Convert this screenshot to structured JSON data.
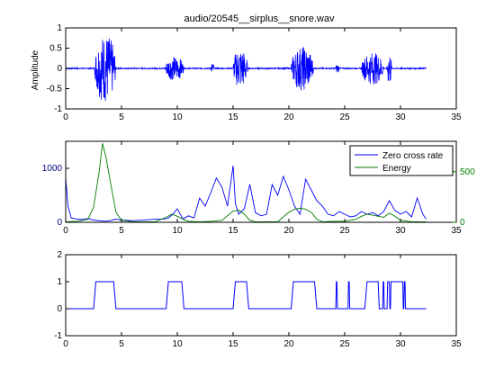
{
  "colors": {
    "blue": "#0000ff",
    "green": "#007f00",
    "axis": "#000000",
    "blue_axis": "#00007f"
  },
  "chart_data": [
    {
      "type": "line",
      "title": "audio/20545__sirplus__snore.wav",
      "xlabel": "",
      "ylabel": "Amplitude",
      "xlim": [
        0,
        35
      ],
      "ylim": [
        -1,
        1
      ],
      "xticks": [
        "0",
        "5",
        "10",
        "15",
        "20",
        "25",
        "30",
        "35"
      ],
      "yticks": [
        "-1",
        "-0.5",
        "0",
        "0.5",
        "1"
      ],
      "grid": false,
      "series": [
        {
          "description_bursts": [
            [
              2.6,
              4.5,
              0.85
            ],
            [
              8.9,
              10.6,
              0.3
            ],
            [
              13.0,
              13.3,
              0.15
            ],
            [
              15.0,
              16.3,
              0.5
            ],
            [
              20.2,
              22.2,
              0.55
            ],
            [
              24.2,
              24.5,
              0.12
            ],
            [
              26.5,
              28.5,
              0.4
            ],
            [
              28.8,
              29.2,
              0.45
            ]
          ],
          "color": "#0000ff",
          "x_end": 32.3
        }
      ]
    },
    {
      "type": "line",
      "title": "",
      "xlim": [
        0,
        35
      ],
      "ylim_left": [
        0,
        1500
      ],
      "ylim_right": [
        0,
        800
      ],
      "xticks": [
        "0",
        "5",
        "10",
        "15",
        "20",
        "25",
        "30",
        "35"
      ],
      "yticks_left": [
        "0",
        "1000"
      ],
      "yticks_right": [
        "0",
        "500"
      ],
      "legend_position": "top-right",
      "series": [
        {
          "name": "Zero cross rate",
          "color": "#0000ff",
          "axis": "left",
          "x": [
            0,
            0.2,
            0.5,
            1,
            1.5,
            2,
            2.5,
            3,
            3.5,
            4,
            4.5,
            5,
            6,
            7,
            8,
            8.8,
            9.2,
            9.6,
            10,
            10.5,
            11,
            11.5,
            12,
            12.5,
            13,
            13.5,
            14,
            14.5,
            15,
            15.2,
            15.5,
            16,
            16.5,
            17,
            17.5,
            18,
            18.5,
            19,
            19.5,
            20,
            20.5,
            21,
            21.5,
            22,
            22.5,
            23,
            23.5,
            24,
            24.5,
            25,
            25.5,
            26,
            26.5,
            27,
            27.5,
            28,
            28.5,
            29,
            29.5,
            30,
            30.5,
            31,
            31.5,
            32,
            32.3
          ],
          "values": [
            820,
            300,
            80,
            60,
            50,
            70,
            40,
            30,
            20,
            30,
            60,
            40,
            30,
            40,
            60,
            60,
            80,
            150,
            250,
            60,
            120,
            80,
            450,
            300,
            550,
            820,
            650,
            300,
            1050,
            350,
            150,
            250,
            700,
            180,
            120,
            150,
            700,
            500,
            850,
            600,
            300,
            150,
            800,
            600,
            400,
            300,
            150,
            120,
            200,
            150,
            100,
            120,
            200,
            150,
            180,
            120,
            200,
            400,
            220,
            150,
            200,
            100,
            450,
            150,
            60
          ]
        },
        {
          "name": "Energy",
          "color": "#007f00",
          "axis": "right",
          "x": [
            0,
            1,
            2,
            2.5,
            3,
            3.3,
            3.6,
            4,
            4.5,
            5,
            6,
            8,
            9,
            9.5,
            10,
            10.5,
            11,
            12,
            13,
            14,
            15,
            15.5,
            16,
            16.5,
            17,
            19,
            20,
            20.5,
            21,
            21.5,
            22,
            22.5,
            23,
            24,
            25,
            26,
            26.5,
            27,
            27.5,
            28,
            28.5,
            29,
            29.5,
            30,
            31,
            32,
            32.3
          ],
          "values": [
            5,
            10,
            30,
            150,
            500,
            780,
            650,
            400,
            100,
            20,
            5,
            5,
            50,
            80,
            60,
            30,
            10,
            5,
            10,
            20,
            110,
            120,
            80,
            20,
            5,
            5,
            100,
            130,
            140,
            130,
            100,
            30,
            5,
            10,
            10,
            30,
            60,
            80,
            70,
            60,
            50,
            90,
            60,
            20,
            5,
            5,
            5
          ]
        }
      ]
    },
    {
      "type": "line",
      "title": "",
      "xlim": [
        0,
        35
      ],
      "ylim": [
        -1,
        2
      ],
      "xticks": [
        "0",
        "5",
        "10",
        "15",
        "20",
        "25",
        "30",
        "35"
      ],
      "yticks": [
        "-1",
        "0",
        "1",
        "2"
      ],
      "series": [
        {
          "color": "#0000ff",
          "x": [
            0,
            2.5,
            2.7,
            4.3,
            4.5,
            9.0,
            9.2,
            10.4,
            10.6,
            15.0,
            15.2,
            16.2,
            16.4,
            20.2,
            20.4,
            22.3,
            22.5,
            24.2,
            24.25,
            24.3,
            24.35,
            25.3,
            25.35,
            25.4,
            25.45,
            26.8,
            27.0,
            28.0,
            28.1,
            28.4,
            28.45,
            28.5,
            28.55,
            28.8,
            28.85,
            29.0,
            29.05,
            29.1,
            29.15,
            30.2,
            30.25,
            30.3,
            30.35,
            30.4,
            30.45,
            30.5,
            30.55,
            32.3
          ],
          "values": [
            0,
            0,
            1,
            1,
            0,
            0,
            1,
            1,
            0,
            0,
            1,
            1,
            0,
            0,
            1,
            1,
            0,
            0,
            1,
            1,
            0,
            0,
            1,
            1,
            0,
            0,
            1,
            1,
            0,
            0,
            1,
            1,
            0,
            0,
            1,
            1,
            0,
            0,
            1,
            1,
            0,
            0,
            1,
            1,
            0,
            0,
            0,
            0
          ]
        }
      ]
    }
  ]
}
